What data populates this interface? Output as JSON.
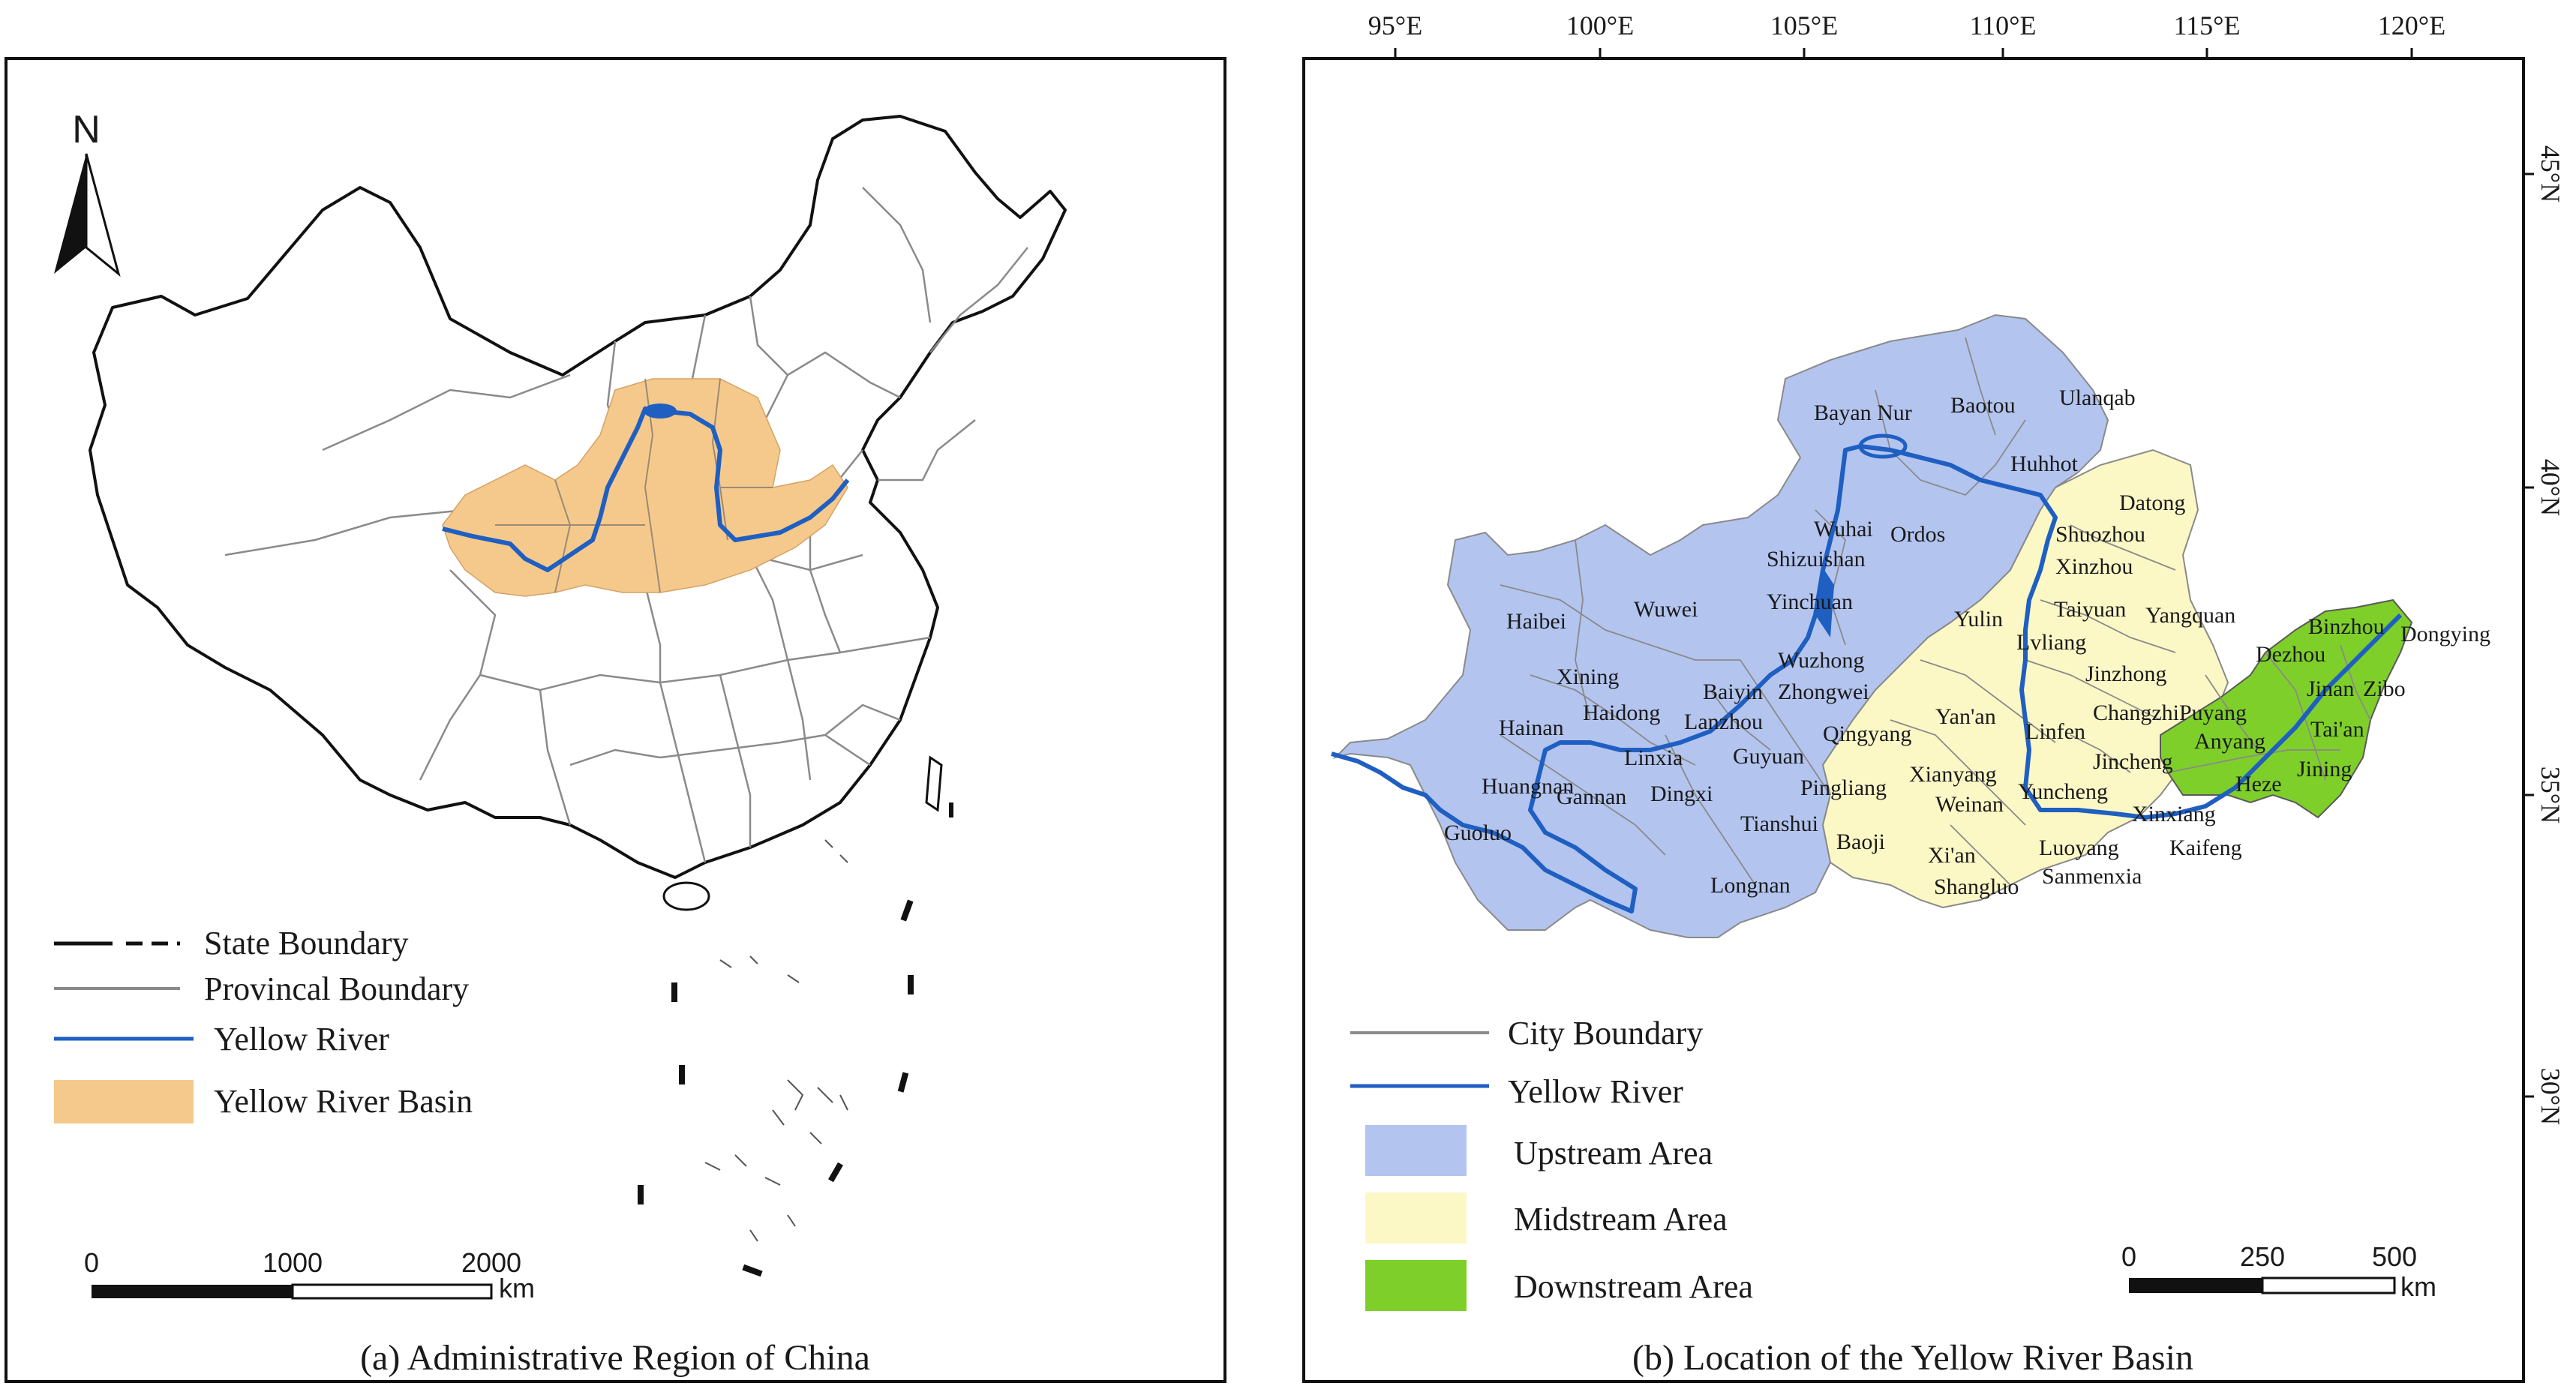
{
  "panel_a": {
    "caption": "(a) Administrative Region of China",
    "north_label": "N",
    "legend": {
      "state_boundary": "State Boundary",
      "provincial_boundary": "Provincal Boundary",
      "yellow_river": "Yellow River",
      "basin": "Yellow River Basin"
    },
    "scale": {
      "labels": [
        "0",
        "1000",
        "2000"
      ],
      "unit": "km"
    }
  },
  "panel_b": {
    "caption": "(b) Location of the Yellow River Basin",
    "lon_ticks": [
      "95°E",
      "100°E",
      "105°E",
      "110°E",
      "115°E",
      "120°E"
    ],
    "lat_ticks": [
      "45°N",
      "40°N",
      "35°N",
      "30°N"
    ],
    "legend": {
      "city_boundary": "City Boundary",
      "yellow_river": "Yellow River",
      "upstream": "Upstream Area",
      "midstream": "Midstream Area",
      "downstream": "Downstream Area"
    },
    "scale": {
      "labels": [
        "0",
        "250",
        "500"
      ],
      "unit": "km"
    },
    "cities": [
      "Bayan Nur",
      "Baotou",
      "Ulanqab",
      "Huhhot",
      "Datong",
      "Wuhai",
      "Ordos",
      "Shuozhou",
      "Shizuishan",
      "Xinzhou",
      "Yinchuan",
      "Haibei",
      "Wuwei",
      "Yulin",
      "Taiyuan",
      "Yangquan",
      "Lvliang",
      "Binzhou",
      "Dongying",
      "Wuzhong",
      "Xining",
      "Jinzhong",
      "Dezhou",
      "Baiyin",
      "Zhongwei",
      "Haidong",
      "Jinan",
      "Zibo",
      "Lanzhou",
      "Hainan",
      "Yan'an",
      "Linfen",
      "Changzhi",
      "Puyang",
      "Tai'an",
      "Qingyang",
      "Anyang",
      "Linxia",
      "Guyuan",
      "Jincheng",
      "Jining",
      "Xianyang",
      "Huangnan",
      "Gannan",
      "Dingxi",
      "Pingliang",
      "Weinan",
      "Yuncheng",
      "Xinxiang",
      "Heze",
      "Tianshui",
      "Baoji",
      "Luoyang",
      "Kaifeng",
      "Guoluo",
      "Xi'an",
      "Sanmenxia",
      "Shangluo",
      "Longnan"
    ]
  },
  "colors": {
    "basin": "#f5c98c",
    "upstream": "#b3c4ef",
    "midstream": "#fbf8c6",
    "downstream": "#7fcf2a",
    "river": "#1f5fc2",
    "province_line": "#8a8a8a"
  }
}
